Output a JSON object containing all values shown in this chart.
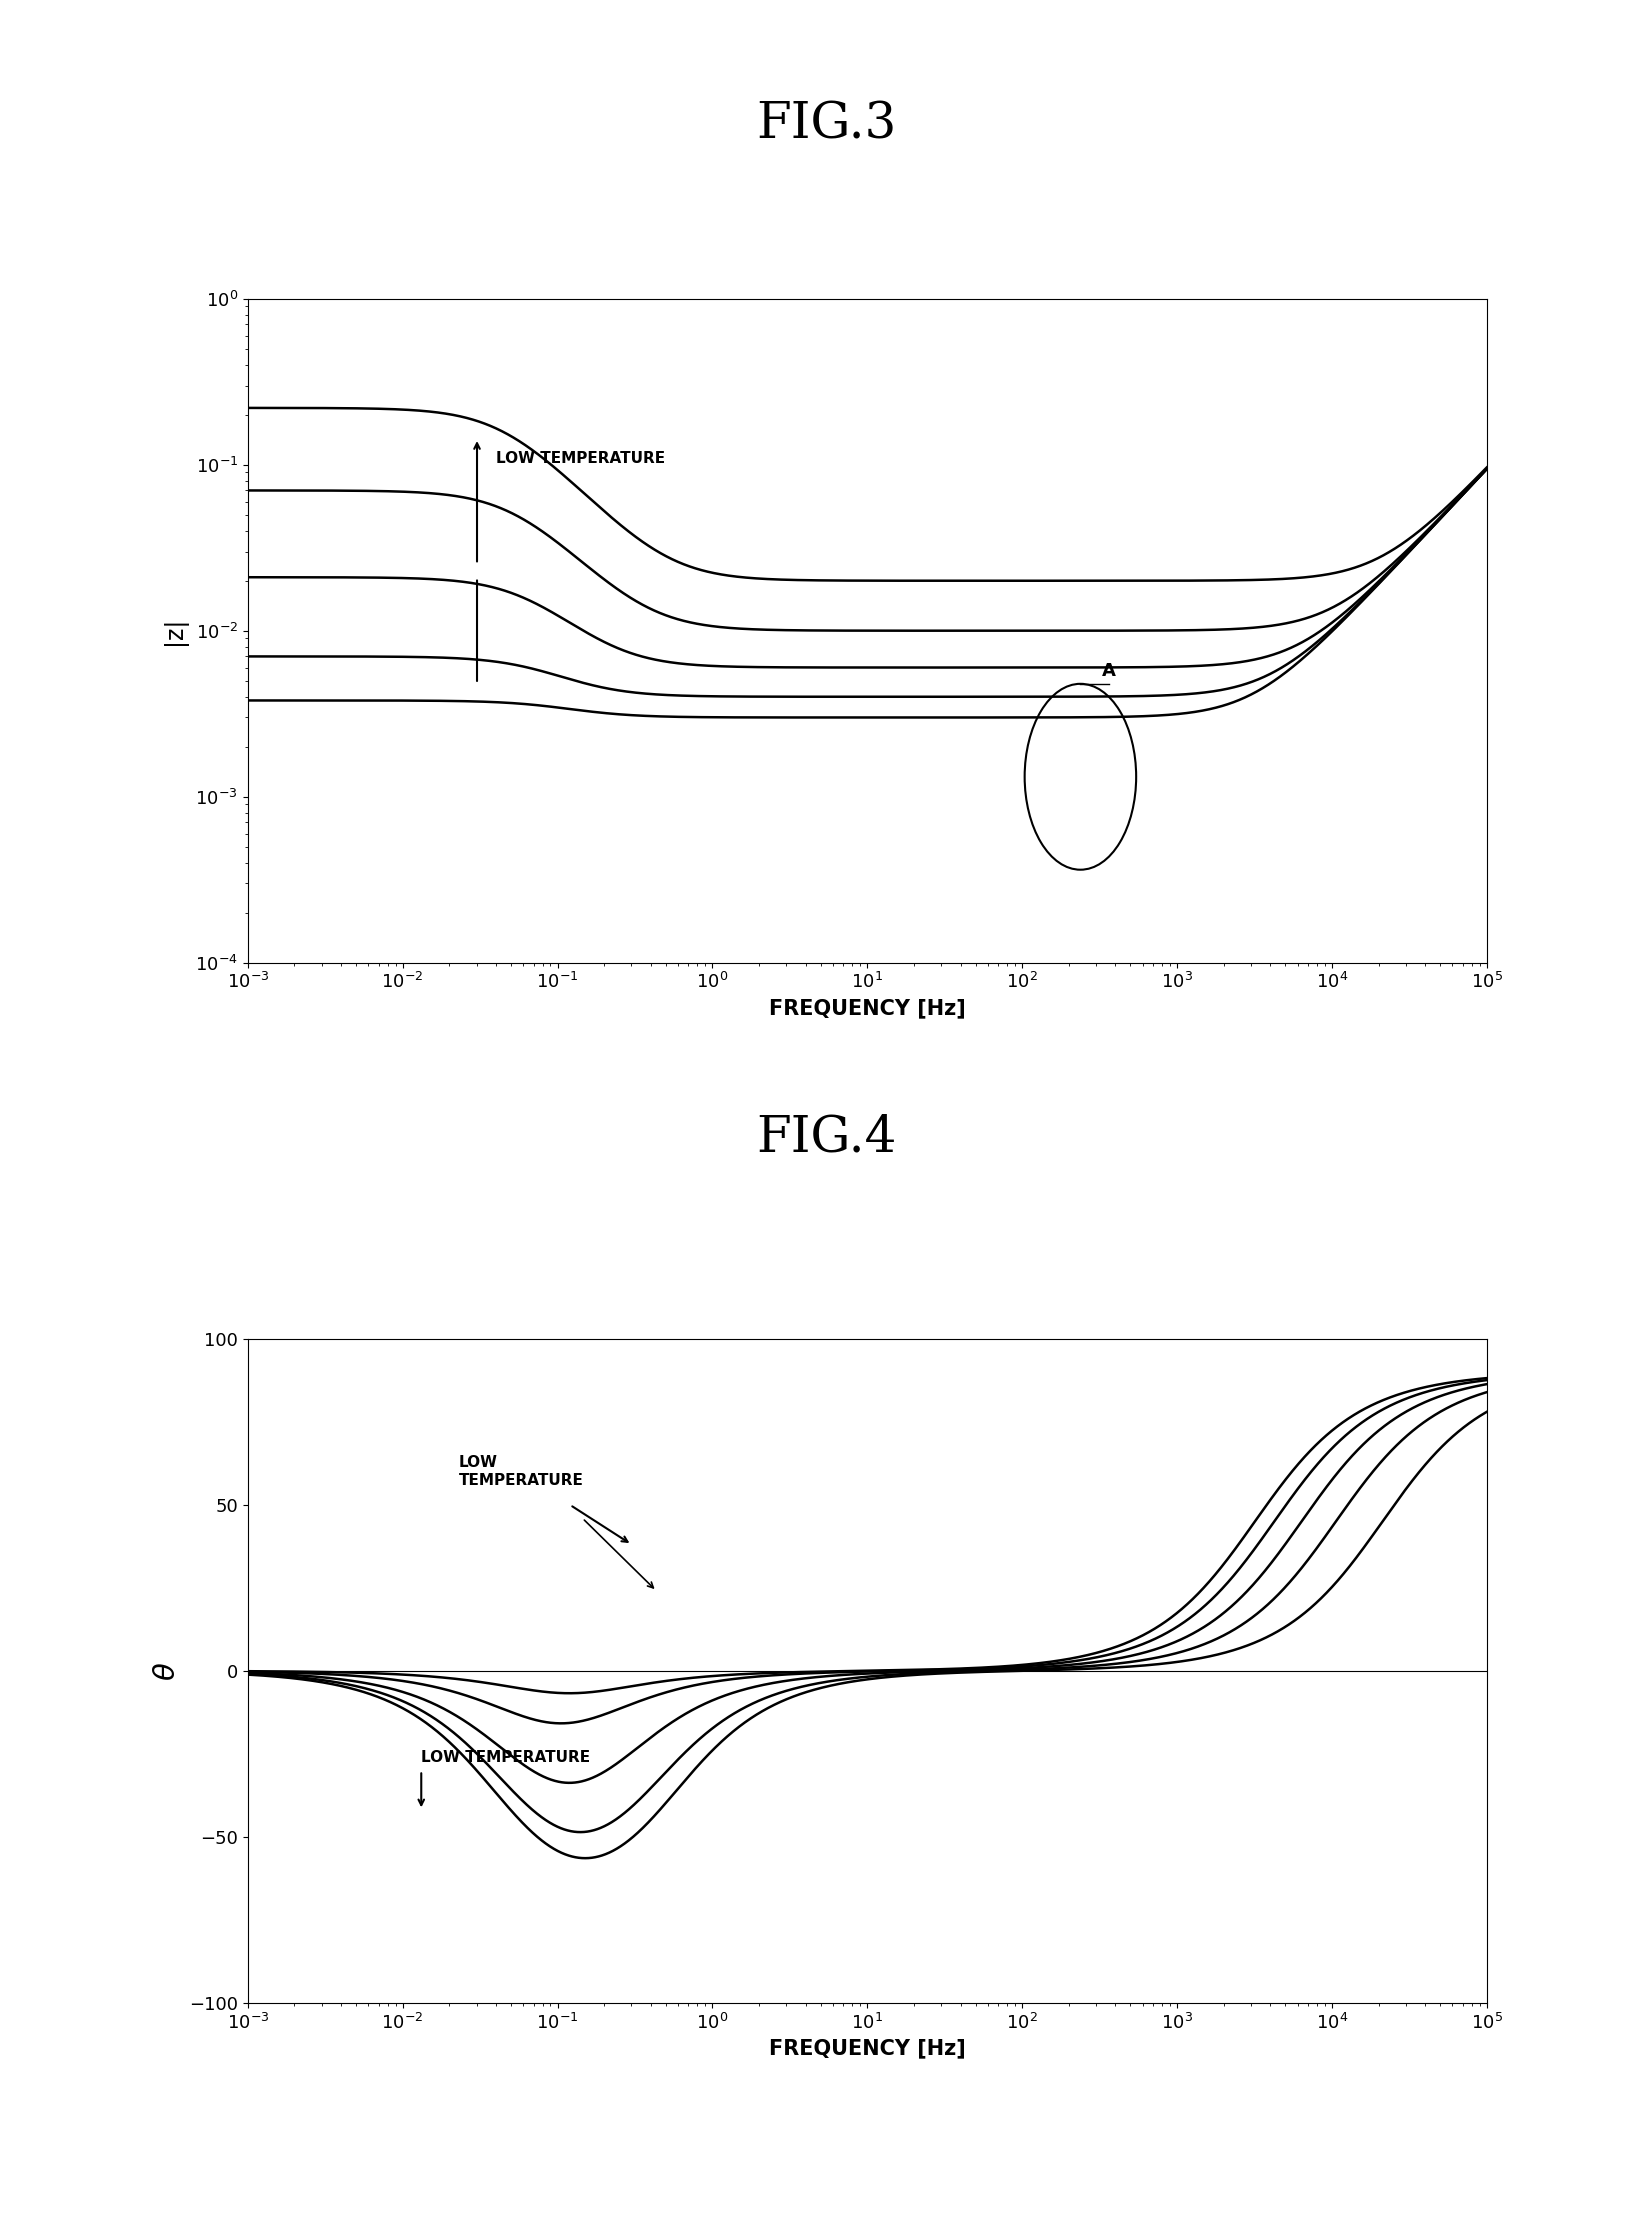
{
  "fig3_title": "FIG.3",
  "fig4_title": "FIG.4",
  "xlabel": "FREQUENCY [Hz]",
  "fig3_ylabel": "|z|",
  "fig4_ylabel": "θ",
  "background_color": "#ffffff",
  "line_color": "#000000",
  "title_fontsize": 36,
  "label_fontsize": 15,
  "tick_fontsize": 13,
  "curve_params": [
    [
      0.003,
      0.0008,
      1.5,
      1.5e-07
    ],
    [
      0.004,
      0.003,
      2.0,
      1.5e-07
    ],
    [
      0.006,
      0.015,
      2.5,
      1.5e-07
    ],
    [
      0.01,
      0.06,
      3.0,
      1.5e-07
    ],
    [
      0.02,
      0.2,
      3.5,
      1.5e-07
    ]
  ]
}
